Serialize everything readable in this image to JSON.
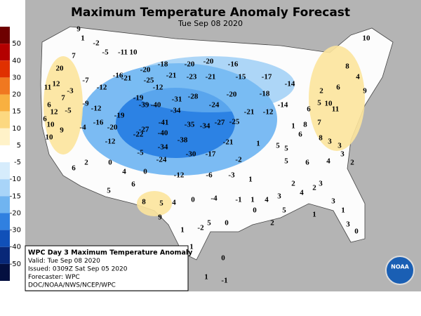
{
  "header": {
    "title": "Maximum Temperature Anomaly Forecast",
    "subtitle": "Tue Sep 08 2020"
  },
  "legend": {
    "labels": [
      50,
      40,
      30,
      20,
      15,
      10,
      5,
      -5,
      -10,
      -15,
      -20,
      -30,
      -40,
      -50
    ]
  },
  "info_box": {
    "lines": [
      "WPC Day 3 Maximum Temperature Anomaly",
      "Valid: Tue Sep 08 2020",
      "Issued: 0309Z Sat Sep 05 2020",
      "Forecaster: WPC",
      "DOC/NOAA/NWS/NCEP/WPC"
    ]
  },
  "logo": "NOAA",
  "anomaly_labels": [
    9,
    1,
    -2,
    7,
    -5,
    -11,
    10,
    20,
    11,
    12,
    7,
    6,
    12,
    6,
    10,
    9,
    10,
    -3,
    -5,
    -4,
    -7,
    -12,
    -9,
    -12,
    -16,
    -20,
    -19,
    -19,
    -16,
    -21,
    -20,
    -18,
    -25,
    -12,
    -21,
    -20,
    -20,
    -16,
    -23,
    -21,
    -15,
    -17,
    -20,
    -28,
    -31,
    -39,
    -40,
    -34,
    -24,
    -21,
    -12,
    -18,
    -14,
    -27,
    -41,
    -40,
    -22,
    -35,
    -34,
    -27,
    -25,
    -38,
    -34,
    -21,
    -12,
    -5,
    -24,
    -30,
    -17,
    -2,
    -12,
    -6,
    -3,
    1,
    1,
    -14,
    10,
    2,
    6,
    8,
    4,
    9,
    5,
    10,
    11,
    6,
    8,
    6,
    7,
    8,
    3,
    3,
    5,
    5,
    1,
    5,
    6,
    4,
    3,
    2,
    3,
    2,
    2,
    4,
    3,
    4,
    1,
    0,
    5,
    2,
    3,
    1,
    3,
    0,
    1,
    0,
    4,
    2,
    6,
    5,
    6,
    0,
    8,
    4,
    0,
    -4,
    5,
    9,
    -1,
    1,
    -2,
    5,
    0,
    1,
    0,
    1,
    -1
  ]
}
